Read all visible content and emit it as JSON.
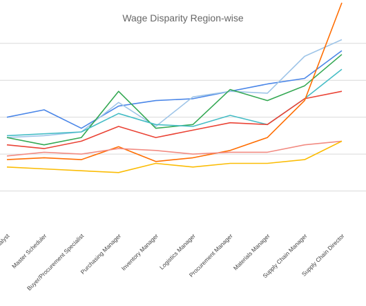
{
  "chart_data": {
    "type": "line",
    "title": "Wage Disparity Region-wise",
    "xlabel": "",
    "ylabel": "",
    "grid": true,
    "legend": "none",
    "categories": [
      "Supply Chain Analyst",
      "Master Scheduler",
      "Buyer/Procurement Specialist",
      "Purchasing Manager",
      "Inventory Manager",
      "Logistics Manager",
      "Procurement Manager",
      "Materials Manager",
      "Supply Chain Manager",
      "Supply Chain Director"
    ],
    "ylim": [
      0,
      5.8
    ],
    "gridlines": [
      1,
      2,
      3,
      4,
      5
    ],
    "series": [
      {
        "color": "#4a86e8",
        "values": [
          3.0,
          3.2,
          2.7,
          3.3,
          3.45,
          3.5,
          3.7,
          3.9,
          4.05,
          4.8
        ]
      },
      {
        "color": "#9fc5e8",
        "values": [
          2.45,
          2.5,
          2.6,
          3.4,
          2.75,
          3.55,
          3.7,
          3.65,
          4.65,
          5.1
        ]
      },
      {
        "color": "#34a853",
        "values": [
          2.45,
          2.25,
          2.45,
          3.7,
          2.7,
          2.8,
          3.75,
          3.45,
          3.85,
          4.7
        ]
      },
      {
        "color": "#46bdc6",
        "values": [
          2.5,
          2.55,
          2.6,
          3.1,
          2.8,
          2.75,
          3.05,
          2.8,
          3.5,
          4.3
        ]
      },
      {
        "color": "#ea4335",
        "values": [
          2.25,
          2.15,
          2.35,
          2.75,
          2.45,
          2.65,
          2.85,
          2.8,
          3.5,
          3.7
        ]
      },
      {
        "color": "#ff6d01",
        "values": [
          1.85,
          1.9,
          1.85,
          2.2,
          1.8,
          1.9,
          2.1,
          2.45,
          3.45,
          6.1
        ]
      },
      {
        "color": "#f28b82",
        "values": [
          1.95,
          2.05,
          2.0,
          2.15,
          2.1,
          2.0,
          2.05,
          2.05,
          2.25,
          2.35
        ]
      },
      {
        "color": "#fbbc04",
        "values": [
          1.65,
          1.6,
          1.55,
          1.5,
          1.75,
          1.65,
          1.75,
          1.75,
          1.85,
          2.35
        ]
      }
    ]
  }
}
